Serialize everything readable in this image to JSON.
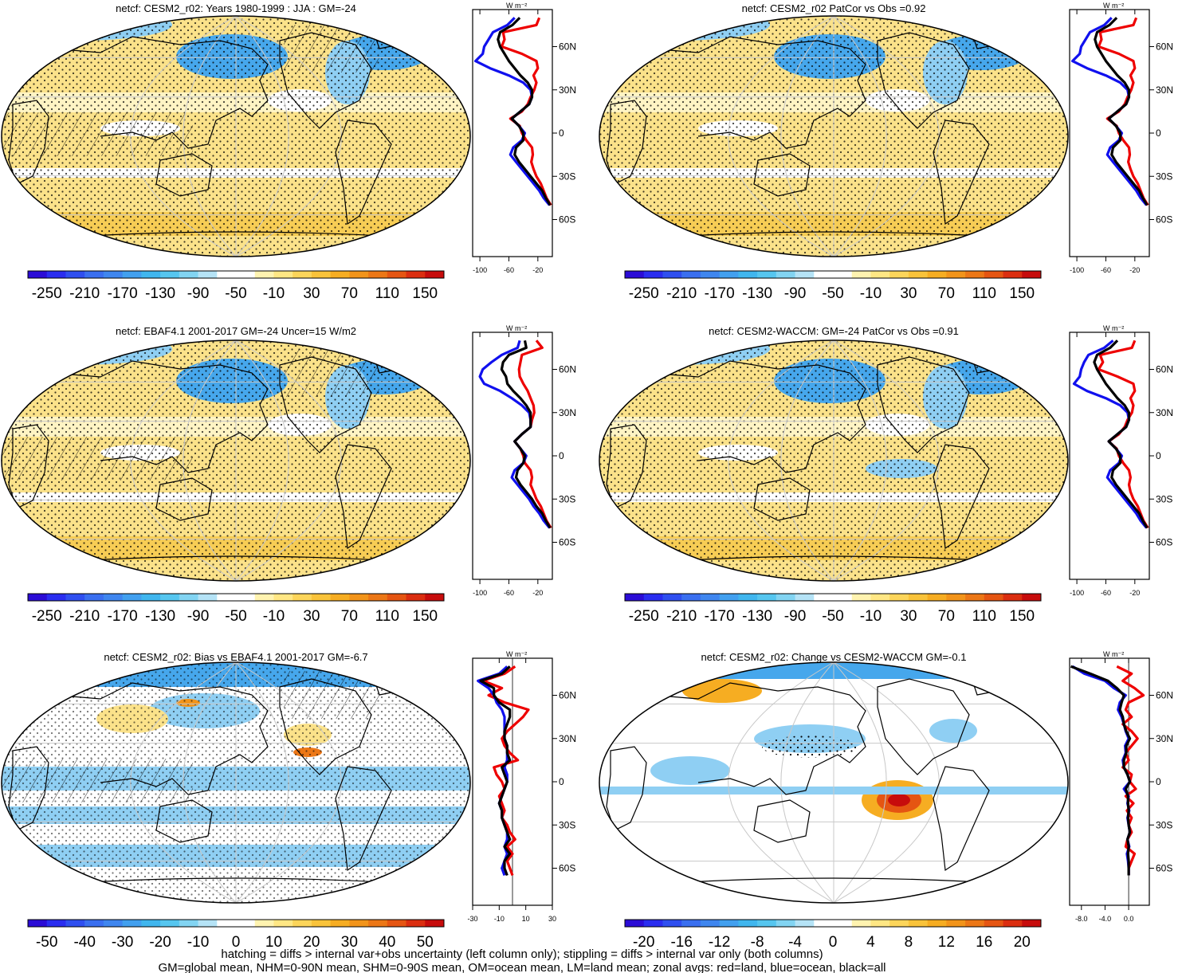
{
  "figure": {
    "footer_lines": [
      "hatching = diffs > internal var+obs uncertainty (left column only); stippling = diffs > internal var only (both columns)",
      "GM=global mean, NHM=0-90N mean, SHM=0-90S mean, OM=ocean mean, LM=land mean; zonal avgs: red=land, blue=ocean, black=all"
    ],
    "units_label": "W m⁻²",
    "lat_ticks": [
      "60N",
      "30N",
      "0",
      "30S",
      "60S"
    ]
  },
  "chart_data": [
    {
      "type": "heatmap",
      "title": "netcf: CESM2_r02: Years 1980-1999 : JJA : GM=-24",
      "colorbar_labels": [
        "-250",
        "-210",
        "-170",
        "-130",
        "-90",
        "-50",
        "-10",
        "30",
        "70",
        "110",
        "150"
      ],
      "zonal_ticks": [
        "-100",
        "-60",
        "-20"
      ],
      "zonal_xlim": [
        -110,
        0
      ],
      "zonal": {
        "lat": [
          80,
          75,
          70,
          65,
          60,
          55,
          50,
          45,
          40,
          35,
          30,
          25,
          20,
          15,
          10,
          5,
          0,
          -5,
          -10,
          -15,
          -20,
          -25,
          -30,
          -35,
          -40,
          -45,
          -50
        ],
        "land": [
          -18,
          -22,
          -68,
          -66,
          -70,
          -42,
          -22,
          -20,
          -26,
          -22,
          -25,
          -30,
          -34,
          -42,
          -58,
          -45,
          -42,
          -36,
          -28,
          -27,
          -29,
          -26,
          -22,
          -16,
          -12,
          -8,
          -2
        ],
        "ocean": [
          -52,
          -62,
          -82,
          -88,
          -94,
          -96,
          -106,
          -86,
          -60,
          -40,
          -30,
          -28,
          -32,
          -44,
          -56,
          -46,
          -38,
          -42,
          -54,
          -58,
          -50,
          -42,
          -34,
          -26,
          -18,
          -12,
          -4
        ],
        "all": [
          -45,
          -55,
          -72,
          -75,
          -72,
          -66,
          -60,
          -52,
          -44,
          -34,
          -28,
          -28,
          -32,
          -44,
          -56,
          -46,
          -40,
          -40,
          -50,
          -52,
          -46,
          -38,
          -30,
          -22,
          -14,
          -9,
          -3
        ]
      },
      "colorbar": {
        "min": -270,
        "max": 170,
        "step": 20
      }
    },
    {
      "type": "heatmap",
      "title": "netcf: CESM2_r02 PatCor vs Obs =0.92",
      "colorbar_labels": [
        "-250",
        "-210",
        "-170",
        "-130",
        "-90",
        "-50",
        "-10",
        "30",
        "70",
        "110",
        "150"
      ],
      "zonal_ticks": [
        "-100",
        "-60",
        "-20"
      ],
      "zonal_xlim": [
        -110,
        0
      ],
      "zonal": {
        "lat": [
          80,
          75,
          70,
          65,
          60,
          55,
          50,
          45,
          40,
          35,
          30,
          25,
          20,
          15,
          10,
          5,
          0,
          -5,
          -10,
          -15,
          -20,
          -25,
          -30,
          -35,
          -40,
          -45,
          -50
        ],
        "land": [
          -18,
          -22,
          -68,
          -66,
          -70,
          -42,
          -22,
          -20,
          -26,
          -22,
          -25,
          -30,
          -34,
          -42,
          -58,
          -45,
          -42,
          -36,
          -28,
          -27,
          -29,
          -26,
          -22,
          -16,
          -12,
          -8,
          -2
        ],
        "ocean": [
          -52,
          -62,
          -82,
          -88,
          -94,
          -96,
          -106,
          -86,
          -60,
          -40,
          -30,
          -28,
          -32,
          -44,
          -56,
          -46,
          -38,
          -42,
          -54,
          -58,
          -50,
          -42,
          -34,
          -26,
          -18,
          -12,
          -4
        ],
        "all": [
          -45,
          -55,
          -72,
          -75,
          -72,
          -66,
          -60,
          -52,
          -44,
          -34,
          -28,
          -28,
          -32,
          -44,
          -56,
          -46,
          -40,
          -40,
          -50,
          -52,
          -46,
          -38,
          -30,
          -22,
          -14,
          -9,
          -3
        ]
      },
      "colorbar": {
        "min": -270,
        "max": 170,
        "step": 20
      }
    },
    {
      "type": "heatmap",
      "title": "netcf: EBAF4.1 2001-2017 GM=-24 Uncer=15 W/m2",
      "colorbar_labels": [
        "-250",
        "-210",
        "-170",
        "-130",
        "-90",
        "-50",
        "-10",
        "30",
        "70",
        "110",
        "150"
      ],
      "zonal_ticks": [
        "-100",
        "-60",
        "-20"
      ],
      "zonal_xlim": [
        -110,
        0
      ],
      "zonal": {
        "lat": [
          80,
          75,
          70,
          65,
          60,
          55,
          50,
          45,
          40,
          35,
          30,
          25,
          20,
          15,
          10,
          5,
          0,
          -5,
          -10,
          -15,
          -20,
          -25,
          -30,
          -35,
          -40,
          -45,
          -50
        ],
        "land": [
          -22,
          -14,
          -42,
          -44,
          -46,
          -45,
          -40,
          -34,
          -30,
          -26,
          -25,
          -28,
          -30,
          -42,
          -52,
          -44,
          -40,
          -38,
          -30,
          -28,
          -30,
          -26,
          -22,
          -16,
          -12,
          -8,
          -2
        ],
        "ocean": [
          -45,
          -48,
          -70,
          -84,
          -96,
          -100,
          -94,
          -72,
          -56,
          -42,
          -32,
          -30,
          -30,
          -42,
          -52,
          -44,
          -36,
          -40,
          -52,
          -56,
          -48,
          -40,
          -32,
          -26,
          -18,
          -12,
          -4
        ],
        "all": [
          -38,
          -36,
          -60,
          -68,
          -70,
          -64,
          -62,
          -54,
          -44,
          -36,
          -30,
          -30,
          -30,
          -42,
          -52,
          -44,
          -38,
          -40,
          -48,
          -50,
          -44,
          -36,
          -28,
          -22,
          -14,
          -9,
          -3
        ]
      },
      "colorbar": {
        "min": -270,
        "max": 170,
        "step": 20
      }
    },
    {
      "type": "heatmap",
      "title": "netcf: CESM2-WACCM: GM=-24 PatCor vs Obs =0.91",
      "colorbar_labels": [
        "-250",
        "-210",
        "-170",
        "-130",
        "-90",
        "-50",
        "-10",
        "30",
        "70",
        "110",
        "150"
      ],
      "zonal_ticks": [
        "-100",
        "-60",
        "-20"
      ],
      "zonal_xlim": [
        -110,
        0
      ],
      "zonal": {
        "lat": [
          80,
          75,
          70,
          65,
          60,
          55,
          50,
          45,
          40,
          35,
          30,
          25,
          20,
          15,
          10,
          5,
          0,
          -5,
          -10,
          -15,
          -20,
          -25,
          -30,
          -35,
          -40,
          -45,
          -50
        ],
        "land": [
          -20,
          -24,
          -68,
          -64,
          -70,
          -44,
          -22,
          -20,
          -26,
          -22,
          -24,
          -30,
          -34,
          -42,
          -56,
          -45,
          -42,
          -36,
          -28,
          -26,
          -28,
          -26,
          -22,
          -16,
          -12,
          -8,
          -2
        ],
        "ocean": [
          -50,
          -62,
          -84,
          -90,
          -94,
          -96,
          -104,
          -86,
          -60,
          -40,
          -30,
          -28,
          -32,
          -44,
          -56,
          -46,
          -38,
          -42,
          -54,
          -58,
          -50,
          -42,
          -34,
          -26,
          -18,
          -12,
          -4
        ],
        "all": [
          -44,
          -54,
          -72,
          -76,
          -72,
          -66,
          -60,
          -52,
          -44,
          -34,
          -28,
          -28,
          -32,
          -44,
          -56,
          -46,
          -40,
          -40,
          -50,
          -52,
          -46,
          -38,
          -30,
          -22,
          -14,
          -9,
          -3
        ]
      },
      "colorbar": {
        "min": -270,
        "max": 170,
        "step": 20
      }
    },
    {
      "type": "heatmap",
      "title": "netcf: CESM2_r02: Bias vs EBAF4.1 2001-2017 GM=-6.7",
      "colorbar_labels": [
        "-50",
        "-40",
        "-30",
        "-20",
        "-10",
        "0",
        "10",
        "20",
        "30",
        "40",
        "50"
      ],
      "zonal_ticks": [
        "-30",
        "-10",
        "10",
        "30"
      ],
      "zonal_xlim": [
        -30,
        30
      ],
      "zonal": {
        "lat": [
          80,
          75,
          70,
          65,
          60,
          55,
          50,
          45,
          40,
          35,
          30,
          25,
          20,
          15,
          10,
          5,
          0,
          -5,
          -10,
          -15,
          -20,
          -25,
          -30,
          -35,
          -40,
          -45,
          -50,
          -55,
          -60,
          -65
        ],
        "land": [
          2,
          -6,
          -22,
          -8,
          -18,
          -6,
          12,
          8,
          2,
          -4,
          -8,
          -6,
          -2,
          4,
          -14,
          -12,
          -8,
          -6,
          -10,
          -8,
          -6,
          -8,
          -4,
          -2,
          2,
          -4,
          0,
          -4,
          -2,
          0
        ],
        "ocean": [
          -4,
          -10,
          -26,
          -18,
          -14,
          -12,
          -8,
          -6,
          -6,
          -6,
          -6,
          -4,
          -4,
          -4,
          -6,
          -4,
          -4,
          -6,
          -8,
          -10,
          -8,
          -8,
          -6,
          -4,
          -4,
          -6,
          -4,
          -6,
          -8,
          -6
        ],
        "all": [
          -2,
          -8,
          -24,
          -14,
          -14,
          -10,
          -2,
          -2,
          -4,
          -6,
          -6,
          -4,
          -4,
          -2,
          -8,
          -6,
          -4,
          -6,
          -8,
          -10,
          -8,
          -8,
          -6,
          -4,
          -2,
          -6,
          -2,
          -6,
          -6,
          -4
        ]
      },
      "colorbar": {
        "min": -55,
        "max": 55,
        "step": 5
      }
    },
    {
      "type": "heatmap",
      "title": "netcf: CESM2_r02: Change vs CESM2-WACCM GM=-0.1",
      "colorbar_labels": [
        "-20",
        "-16",
        "-12",
        "-8",
        "-4",
        "0",
        "4",
        "8",
        "12",
        "16",
        "20"
      ],
      "zonal_ticks": [
        "-8.0",
        "-4.0",
        "0.0"
      ],
      "zonal_xlim": [
        -10,
        3.5
      ],
      "zonal": {
        "lat": [
          80,
          75,
          70,
          65,
          60,
          55,
          50,
          45,
          40,
          35,
          30,
          25,
          20,
          15,
          10,
          5,
          0,
          -5,
          -10,
          -15,
          -20,
          -25,
          -30,
          -35,
          -40,
          -45,
          -50,
          -55,
          -60,
          -65
        ],
        "land": [
          -2,
          0.5,
          -1,
          1,
          2.5,
          0,
          -0.5,
          0.5,
          -1,
          0.5,
          1.5,
          0.5,
          -0.5,
          0,
          -1,
          0.5,
          0.2,
          1.2,
          -0.5,
          0.8,
          -0.3,
          0.5,
          0,
          0.5,
          -0.2,
          -0.5,
          1,
          0.5,
          0,
          0
        ],
        "ocean": [
          -9.5,
          -7.5,
          -4,
          -2.5,
          -0.5,
          -1.5,
          -1.8,
          -1.2,
          -0.8,
          -0.5,
          0,
          -0.6,
          -0.5,
          -1,
          -0.8,
          -0.2,
          0.2,
          -0.8,
          0,
          -0.2,
          0.1,
          -0.2,
          0,
          0.2,
          -0.2,
          0.1,
          -0.3,
          -0.1,
          0,
          0
        ],
        "all": [
          -9.8,
          -6.5,
          -3.5,
          -2,
          -0.8,
          -1.2,
          -1.5,
          -1,
          -0.8,
          -0.4,
          0.2,
          -0.4,
          -0.4,
          -0.8,
          -0.8,
          -0.2,
          0.2,
          -0.5,
          -0.1,
          -0.1,
          0,
          -0.1,
          0,
          0.2,
          -0.2,
          0,
          -0.1,
          0,
          0,
          0
        ]
      },
      "colorbar": {
        "min": -22,
        "max": 22,
        "step": 2
      }
    }
  ]
}
